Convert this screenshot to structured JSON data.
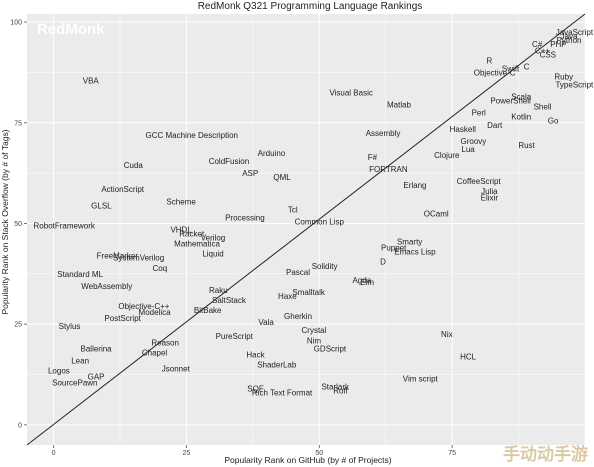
{
  "chart_data": {
    "type": "scatter",
    "title": "RedMonk Q321 Programming Language Rankings",
    "brand": "RedMonk",
    "watermark": "手动动手游",
    "xlabel": "Popularity Rank on GitHub (by # of Projects)",
    "ylabel": "Popularity Rank on Stack Overflow (by # of Tags)",
    "xlim": [
      -5,
      100
    ],
    "ylim": [
      -5,
      102
    ],
    "xticks": [
      0,
      25,
      50,
      75
    ],
    "yticks": [
      0,
      25,
      50,
      75,
      100
    ],
    "grid": true,
    "trend_line": {
      "x": [
        -5,
        100
      ],
      "y": [
        -5,
        102
      ]
    },
    "colors": {
      "panel": "#ebebeb",
      "grid": "#ffffff",
      "text": "#222222",
      "trend": "#222222"
    },
    "points": [
      {
        "label": "JavaScript",
        "x": 98,
        "y": 97.5
      },
      {
        "label": "Java",
        "x": 97,
        "y": 96.5
      },
      {
        "label": "Python",
        "x": 97,
        "y": 95.5
      },
      {
        "label": "PHP",
        "x": 95,
        "y": 94.5
      },
      {
        "label": "C#",
        "x": 91,
        "y": 94.5
      },
      {
        "label": "C++",
        "x": 92,
        "y": 93
      },
      {
        "label": "CSS",
        "x": 93,
        "y": 92
      },
      {
        "label": "R",
        "x": 82,
        "y": 90.5
      },
      {
        "label": "Swift",
        "x": 86,
        "y": 88.5
      },
      {
        "label": "C",
        "x": 89,
        "y": 89
      },
      {
        "label": "Objective-C",
        "x": 83,
        "y": 87.5
      },
      {
        "label": "Ruby",
        "x": 96,
        "y": 86.5
      },
      {
        "label": "TypeScript",
        "x": 98,
        "y": 84.5
      },
      {
        "label": "VBA",
        "x": 7,
        "y": 85.5
      },
      {
        "label": "Visual Basic",
        "x": 56,
        "y": 82.5
      },
      {
        "label": "Scala",
        "x": 88,
        "y": 81.5
      },
      {
        "label": "PowerShell",
        "x": 86,
        "y": 80.5
      },
      {
        "label": "Matlab",
        "x": 65,
        "y": 79.5
      },
      {
        "label": "Shell",
        "x": 92,
        "y": 79
      },
      {
        "label": "Perl",
        "x": 80,
        "y": 77.5
      },
      {
        "label": "Kotlin",
        "x": 88,
        "y": 76.5
      },
      {
        "label": "Go",
        "x": 94,
        "y": 75.5
      },
      {
        "label": "Dart",
        "x": 83,
        "y": 74.5
      },
      {
        "label": "Haskell",
        "x": 77,
        "y": 73.5
      },
      {
        "label": "Assembly",
        "x": 62,
        "y": 72.5
      },
      {
        "label": "GCC Machine Description",
        "x": 26,
        "y": 72
      },
      {
        "label": "Groovy",
        "x": 79,
        "y": 70.5
      },
      {
        "label": "Rust",
        "x": 89,
        "y": 69.5
      },
      {
        "label": "Lua",
        "x": 78,
        "y": 68.5
      },
      {
        "label": "Arduino",
        "x": 41,
        "y": 67.5
      },
      {
        "label": "Clojure",
        "x": 74,
        "y": 67
      },
      {
        "label": "F#",
        "x": 60,
        "y": 66.5
      },
      {
        "label": "ColdFusion",
        "x": 33,
        "y": 65.5
      },
      {
        "label": "Cuda",
        "x": 15,
        "y": 64.5
      },
      {
        "label": "FORTRAN",
        "x": 63,
        "y": 63.5
      },
      {
        "label": "ASP",
        "x": 37,
        "y": 62.5
      },
      {
        "label": "QML",
        "x": 43,
        "y": 61.5
      },
      {
        "label": "CoffeeScript",
        "x": 80,
        "y": 60.5
      },
      {
        "label": "Erlang",
        "x": 68,
        "y": 59.5
      },
      {
        "label": "ActionScript",
        "x": 13,
        "y": 58.5
      },
      {
        "label": "Julia",
        "x": 82,
        "y": 58
      },
      {
        "label": "Elixir",
        "x": 82,
        "y": 56.5
      },
      {
        "label": "Scheme",
        "x": 24,
        "y": 55.5
      },
      {
        "label": "GLSL",
        "x": 9,
        "y": 54.5
      },
      {
        "label": "Tcl",
        "x": 45,
        "y": 53.5
      },
      {
        "label": "OCaml",
        "x": 72,
        "y": 52.5
      },
      {
        "label": "Processing",
        "x": 36,
        "y": 51.5
      },
      {
        "label": "Common Lisp",
        "x": 50,
        "y": 50.5
      },
      {
        "label": "RobotFramework",
        "x": 2,
        "y": 49.5
      },
      {
        "label": "VHDL",
        "x": 24,
        "y": 48.5
      },
      {
        "label": "Racket",
        "x": 26,
        "y": 47.5
      },
      {
        "label": "Verilog",
        "x": 30,
        "y": 46.5
      },
      {
        "label": "Smarty",
        "x": 67,
        "y": 45.5
      },
      {
        "label": "Mathematica",
        "x": 27,
        "y": 45
      },
      {
        "label": "Puppet",
        "x": 64,
        "y": 44
      },
      {
        "label": "Emacs Lisp",
        "x": 68,
        "y": 43
      },
      {
        "label": "Liquid",
        "x": 30,
        "y": 42.5
      },
      {
        "label": "FreeMarker",
        "x": 12,
        "y": 42
      },
      {
        "label": "SystemVerilog",
        "x": 16,
        "y": 41.5
      },
      {
        "label": "D",
        "x": 62,
        "y": 40.5
      },
      {
        "label": "Solidity",
        "x": 51,
        "y": 39.5
      },
      {
        "label": "Coq",
        "x": 20,
        "y": 39
      },
      {
        "label": "Pascal",
        "x": 46,
        "y": 38
      },
      {
        "label": "Standard ML",
        "x": 5,
        "y": 37.5
      },
      {
        "label": "Agda",
        "x": 58,
        "y": 36
      },
      {
        "label": "Elm",
        "x": 59,
        "y": 35.5
      },
      {
        "label": "WebAssembly",
        "x": 10,
        "y": 34.5
      },
      {
        "label": "Raku",
        "x": 31,
        "y": 33.5
      },
      {
        "label": "Smalltalk",
        "x": 48,
        "y": 33
      },
      {
        "label": "Haxe",
        "x": 44,
        "y": 32
      },
      {
        "label": "SaltStack",
        "x": 33,
        "y": 31
      },
      {
        "label": "Objective-C++",
        "x": 17,
        "y": 29.5
      },
      {
        "label": "BitBake",
        "x": 29,
        "y": 28.5
      },
      {
        "label": "Modelica",
        "x": 19,
        "y": 28
      },
      {
        "label": "Gherkin",
        "x": 46,
        "y": 27
      },
      {
        "label": "PostScript",
        "x": 13,
        "y": 26.5
      },
      {
        "label": "Vala",
        "x": 40,
        "y": 25.5
      },
      {
        "label": "Stylus",
        "x": 3,
        "y": 24.5
      },
      {
        "label": "Crystal",
        "x": 49,
        "y": 23.5
      },
      {
        "label": "Nix",
        "x": 74,
        "y": 22.5
      },
      {
        "label": "PureScript",
        "x": 34,
        "y": 22
      },
      {
        "label": "Nim",
        "x": 49,
        "y": 21
      },
      {
        "label": "Reason",
        "x": 21,
        "y": 20.5
      },
      {
        "label": "GDScript",
        "x": 52,
        "y": 19
      },
      {
        "label": "Ballerina",
        "x": 8,
        "y": 19
      },
      {
        "label": "Chapel",
        "x": 19,
        "y": 18
      },
      {
        "label": "Hack",
        "x": 38,
        "y": 17.5
      },
      {
        "label": "HCL",
        "x": 78,
        "y": 17
      },
      {
        "label": "Lean",
        "x": 5,
        "y": 16
      },
      {
        "label": "ShaderLab",
        "x": 42,
        "y": 15
      },
      {
        "label": "Jsonnet",
        "x": 23,
        "y": 14
      },
      {
        "label": "Logos",
        "x": 1,
        "y": 13.5
      },
      {
        "label": "GAP",
        "x": 8,
        "y": 12
      },
      {
        "label": "Vim script",
        "x": 69,
        "y": 11.5
      },
      {
        "label": "SourcePawn",
        "x": 4,
        "y": 10.5
      },
      {
        "label": "Starlark",
        "x": 53,
        "y": 9.5
      },
      {
        "label": "SQF",
        "x": 38,
        "y": 9
      },
      {
        "label": "Roff",
        "x": 54,
        "y": 8.5
      },
      {
        "label": "Rich Text Format",
        "x": 43,
        "y": 8
      }
    ]
  }
}
